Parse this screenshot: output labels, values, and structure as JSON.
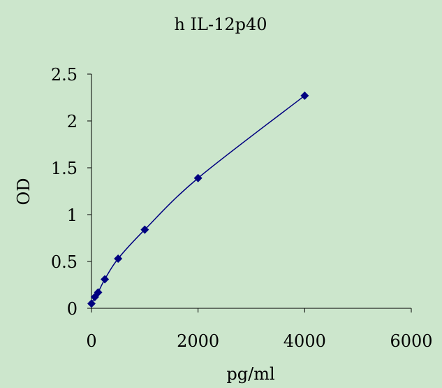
{
  "chart_data": {
    "type": "line",
    "title": "h IL-12p40",
    "xlabel": "pg/ml",
    "ylabel": "OD",
    "xlim": [
      0,
      6000
    ],
    "ylim": [
      0,
      2.5
    ],
    "x_ticks": [
      0,
      2000,
      4000,
      6000
    ],
    "x_tick_labels": [
      "0",
      "2000",
      "4000",
      "6000"
    ],
    "y_ticks": [
      0,
      0.5,
      1,
      1.5,
      2,
      2.5
    ],
    "y_tick_labels": [
      "0",
      "0.5",
      "1",
      "1.5",
      "2",
      "2.5"
    ],
    "grid": false,
    "legend": "none",
    "series": [
      {
        "x": [
          0,
          62.5,
          125,
          250,
          500,
          1000,
          2000,
          4000
        ],
        "y": [
          0.05,
          0.12,
          0.17,
          0.31,
          0.53,
          0.84,
          1.39,
          2.27
        ],
        "color": "#000080",
        "marker": "diamond"
      }
    ]
  },
  "colors": {
    "background": "#cce6cc",
    "series": "#000080",
    "axis": "#000000"
  }
}
